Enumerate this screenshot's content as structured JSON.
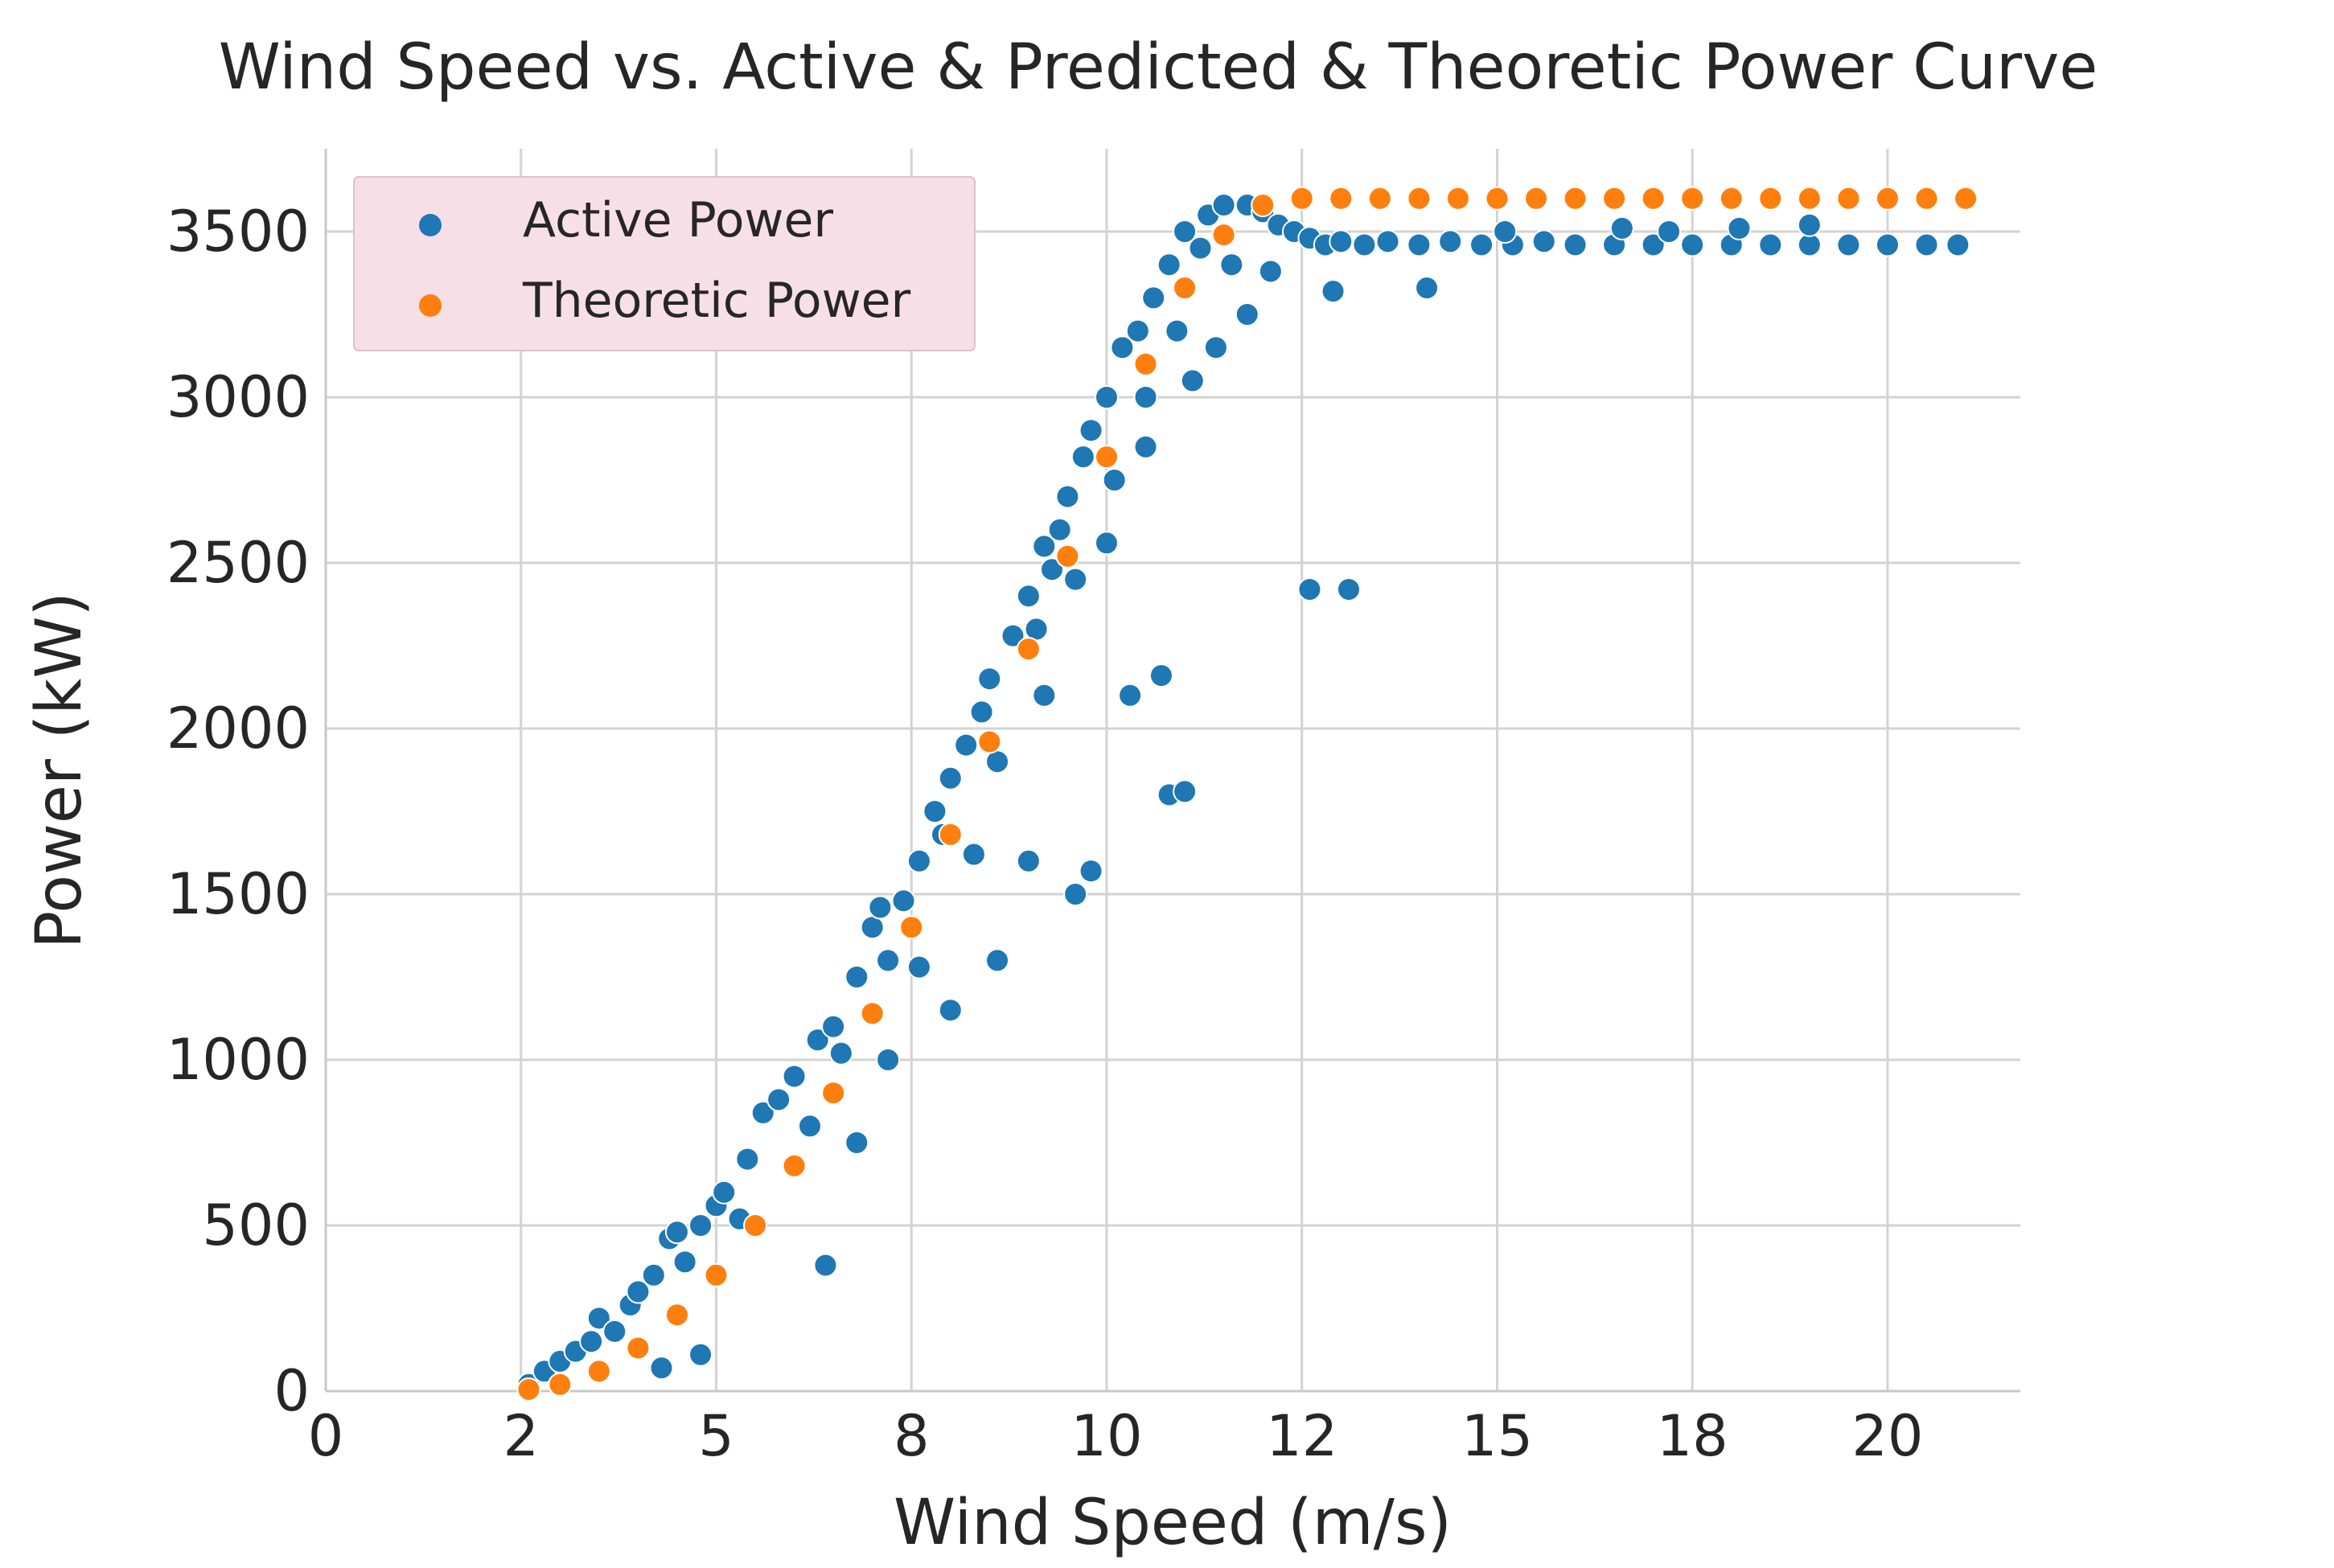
{
  "chart_data": {
    "type": "scatter",
    "title": "Wind Speed vs. Active & Predicted & Theoretic Power Curve",
    "xlabel": "Wind Speed (m/s)",
    "ylabel": "Power (kW)",
    "xlim": [
      0,
      21.7
    ],
    "ylim": [
      0,
      3750
    ],
    "x_ticks": [
      0,
      2.5,
      5,
      7.5,
      10,
      12.5,
      15,
      17.5,
      20
    ],
    "x_tick_labels": [
      "0",
      "2",
      "5",
      "8",
      "10",
      "12",
      "15",
      "18",
      "20"
    ],
    "y_ticks": [
      0,
      500,
      1000,
      1500,
      2000,
      2500,
      3000,
      3500
    ],
    "y_tick_labels": [
      "0",
      "500",
      "1000",
      "1500",
      "2000",
      "2500",
      "3000",
      "3500"
    ],
    "grid": true,
    "legend": {
      "position": "top-left",
      "background": "#f7dfe8",
      "entries": [
        {
          "label": "Active Power",
          "color": "#1f77b4"
        },
        {
          "label": "Theoretic Power",
          "color": "#ff7f0e"
        }
      ]
    },
    "series": [
      {
        "name": "Active Power",
        "color": "#1f77b4",
        "points": [
          [
            2.6,
            20
          ],
          [
            2.8,
            60
          ],
          [
            3.0,
            90
          ],
          [
            3.2,
            120
          ],
          [
            3.4,
            150
          ],
          [
            3.5,
            220
          ],
          [
            3.7,
            180
          ],
          [
            3.9,
            260
          ],
          [
            4.0,
            300
          ],
          [
            4.2,
            350
          ],
          [
            4.4,
            460
          ],
          [
            4.5,
            480
          ],
          [
            4.6,
            390
          ],
          [
            4.8,
            500
          ],
          [
            5.0,
            560
          ],
          [
            5.1,
            600
          ],
          [
            5.3,
            520
          ],
          [
            5.4,
            700
          ],
          [
            5.6,
            840
          ],
          [
            5.8,
            880
          ],
          [
            6.0,
            950
          ],
          [
            6.2,
            800
          ],
          [
            6.3,
            1060
          ],
          [
            6.5,
            1100
          ],
          [
            6.6,
            1020
          ],
          [
            6.8,
            1250
          ],
          [
            7.0,
            1400
          ],
          [
            7.1,
            1460
          ],
          [
            7.2,
            1300
          ],
          [
            7.4,
            1480
          ],
          [
            7.6,
            1600
          ],
          [
            7.8,
            1750
          ],
          [
            7.9,
            1680
          ],
          [
            8.0,
            1850
          ],
          [
            8.2,
            1950
          ],
          [
            8.4,
            2050
          ],
          [
            8.5,
            2150
          ],
          [
            8.6,
            1900
          ],
          [
            8.8,
            2280
          ],
          [
            9.0,
            2400
          ],
          [
            9.1,
            2300
          ],
          [
            9.2,
            2550
          ],
          [
            9.3,
            2480
          ],
          [
            9.4,
            2600
          ],
          [
            9.5,
            2700
          ],
          [
            9.6,
            2450
          ],
          [
            9.7,
            2820
          ],
          [
            9.8,
            2900
          ],
          [
            10.0,
            3000
          ],
          [
            10.1,
            2750
          ],
          [
            10.2,
            3150
          ],
          [
            10.4,
            3200
          ],
          [
            10.5,
            3000
          ],
          [
            10.6,
            3300
          ],
          [
            10.8,
            3400
          ],
          [
            10.9,
            3200
          ],
          [
            11.0,
            3500
          ],
          [
            11.2,
            3450
          ],
          [
            11.3,
            3550
          ],
          [
            11.5,
            3580
          ],
          [
            11.6,
            3400
          ],
          [
            11.8,
            3580
          ],
          [
            12.0,
            3560
          ],
          [
            12.2,
            3520
          ],
          [
            12.4,
            3500
          ],
          [
            12.6,
            3480
          ],
          [
            12.8,
            3460
          ],
          [
            13.0,
            3470
          ],
          [
            13.3,
            3460
          ],
          [
            13.6,
            3470
          ],
          [
            14.0,
            3460
          ],
          [
            14.4,
            3470
          ],
          [
            14.8,
            3460
          ],
          [
            15.2,
            3460
          ],
          [
            15.6,
            3470
          ],
          [
            16.0,
            3460
          ],
          [
            16.5,
            3460
          ],
          [
            17.0,
            3460
          ],
          [
            17.5,
            3460
          ],
          [
            18.0,
            3460
          ],
          [
            18.5,
            3460
          ],
          [
            19.0,
            3460
          ],
          [
            19.5,
            3460
          ],
          [
            20.0,
            3460
          ],
          [
            20.5,
            3460
          ],
          [
            20.9,
            3460
          ],
          [
            16.6,
            3510
          ],
          [
            17.2,
            3500
          ],
          [
            18.1,
            3510
          ],
          [
            19.0,
            3520
          ],
          [
            15.1,
            3500
          ],
          [
            14.1,
            3330
          ],
          [
            12.9,
            3320
          ],
          [
            12.6,
            2420
          ],
          [
            13.1,
            2420
          ],
          [
            10.8,
            1800
          ],
          [
            11.0,
            1810
          ],
          [
            10.3,
            2100
          ],
          [
            10.7,
            2160
          ],
          [
            9.8,
            1570
          ],
          [
            9.6,
            1500
          ],
          [
            8.0,
            1150
          ],
          [
            8.6,
            1300
          ],
          [
            9.0,
            1600
          ],
          [
            6.4,
            380
          ],
          [
            4.8,
            110
          ],
          [
            4.3,
            70
          ],
          [
            7.2,
            1000
          ],
          [
            6.8,
            750
          ],
          [
            7.6,
            1280
          ],
          [
            8.3,
            1620
          ],
          [
            9.2,
            2100
          ],
          [
            10.0,
            2560
          ],
          [
            10.5,
            2850
          ],
          [
            11.1,
            3050
          ],
          [
            11.4,
            3150
          ],
          [
            11.8,
            3250
          ],
          [
            12.1,
            3380
          ]
        ]
      },
      {
        "name": "Theoretic Power",
        "color": "#ff7f0e",
        "points": [
          [
            2.6,
            5
          ],
          [
            3.0,
            20
          ],
          [
            3.5,
            60
          ],
          [
            4.0,
            130
          ],
          [
            4.5,
            230
          ],
          [
            5.0,
            350
          ],
          [
            5.5,
            500
          ],
          [
            6.0,
            680
          ],
          [
            6.5,
            900
          ],
          [
            7.0,
            1140
          ],
          [
            7.5,
            1400
          ],
          [
            8.0,
            1680
          ],
          [
            8.5,
            1960
          ],
          [
            9.0,
            2240
          ],
          [
            9.5,
            2520
          ],
          [
            10.0,
            2820
          ],
          [
            10.5,
            3100
          ],
          [
            11.0,
            3330
          ],
          [
            11.5,
            3490
          ],
          [
            12.0,
            3580
          ],
          [
            12.5,
            3600
          ],
          [
            13.0,
            3600
          ],
          [
            13.5,
            3600
          ],
          [
            14.0,
            3600
          ],
          [
            14.5,
            3600
          ],
          [
            15.0,
            3600
          ],
          [
            15.5,
            3600
          ],
          [
            16.0,
            3600
          ],
          [
            16.5,
            3600
          ],
          [
            17.0,
            3600
          ],
          [
            17.5,
            3600
          ],
          [
            18.0,
            3600
          ],
          [
            18.5,
            3600
          ],
          [
            19.0,
            3600
          ],
          [
            19.5,
            3600
          ],
          [
            20.0,
            3600
          ],
          [
            20.5,
            3600
          ],
          [
            21.0,
            3600
          ]
        ]
      }
    ]
  }
}
